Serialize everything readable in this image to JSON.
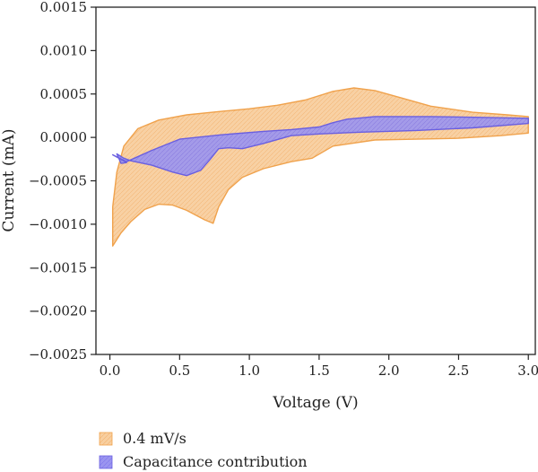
{
  "chart_data": {
    "type": "area",
    "title": "",
    "xlabel": "Voltage (V)",
    "ylabel": "Current (mA)",
    "xlim": [
      -0.1,
      3.05
    ],
    "ylim": [
      -0.0025,
      0.0015
    ],
    "x_ticks": [
      0.0,
      0.5,
      1.0,
      1.5,
      2.0,
      2.5,
      3.0
    ],
    "x_tick_labels": [
      "0.0",
      "0.5",
      "1.0",
      "1.5",
      "2.0",
      "2.5",
      "3.0"
    ],
    "y_ticks": [
      0.0015,
      0.001,
      0.0005,
      0.0,
      -0.0005,
      -0.001,
      -0.0015,
      -0.002,
      -0.0025
    ],
    "y_tick_labels": [
      "0.0015",
      "0.0010",
      "0.0005",
      "0.0000",
      "−0.0005",
      "−0.0010",
      "−0.0015",
      "−0.0020",
      "−0.0025"
    ],
    "grid": false,
    "legend_position": "bottom-left, below plot",
    "series": [
      {
        "name": "0.4 mV/s",
        "fill_color": "#f8cf9f",
        "edge_color": "#f0a24c",
        "hatch_color": "#f3b270",
        "points": [
          [
            0.02,
            -0.00125
          ],
          [
            0.02,
            -0.0008
          ],
          [
            0.05,
            -0.0004
          ],
          [
            0.1,
            -0.0001
          ],
          [
            0.2,
            0.0001
          ],
          [
            0.35,
            0.0002
          ],
          [
            0.55,
            0.00026
          ],
          [
            0.8,
            0.0003
          ],
          [
            1.0,
            0.00033
          ],
          [
            1.2,
            0.00037
          ],
          [
            1.4,
            0.00043
          ],
          [
            1.6,
            0.00053
          ],
          [
            1.75,
            0.00057
          ],
          [
            1.9,
            0.00054
          ],
          [
            2.1,
            0.00045
          ],
          [
            2.3,
            0.00036
          ],
          [
            2.6,
            0.00029
          ],
          [
            2.85,
            0.00026
          ],
          [
            3.0,
            0.00024
          ],
          [
            3.0,
            5e-05
          ],
          [
            2.8,
            2e-05
          ],
          [
            2.5,
            -1e-05
          ],
          [
            2.2,
            -2e-05
          ],
          [
            1.9,
            -3e-05
          ],
          [
            1.6,
            -0.0001
          ],
          [
            1.45,
            -0.00024
          ],
          [
            1.3,
            -0.00028
          ],
          [
            1.1,
            -0.00036
          ],
          [
            0.95,
            -0.00046
          ],
          [
            0.85,
            -0.0006
          ],
          [
            0.78,
            -0.0008
          ],
          [
            0.74,
            -0.00099
          ],
          [
            0.68,
            -0.00095
          ],
          [
            0.55,
            -0.00084
          ],
          [
            0.45,
            -0.00078
          ],
          [
            0.35,
            -0.00077
          ],
          [
            0.25,
            -0.00083
          ],
          [
            0.15,
            -0.00097
          ],
          [
            0.08,
            -0.0011
          ],
          [
            0.02,
            -0.00125
          ]
        ]
      },
      {
        "name": "Capacitance contribution",
        "fill_color": "#9b95f0",
        "edge_color": "#6a5fe0",
        "hatch_color": "#7e76ec",
        "points": [
          [
            0.02,
            -0.0002
          ],
          [
            0.12,
            -0.00028
          ],
          [
            0.3,
            -0.00015
          ],
          [
            0.5,
            -2e-05
          ],
          [
            0.8,
            3e-05
          ],
          [
            1.1,
            7e-05
          ],
          [
            1.3,
            9e-05
          ],
          [
            1.5,
            0.00012
          ],
          [
            1.6,
            0.00017
          ],
          [
            1.7,
            0.00021
          ],
          [
            1.9,
            0.00024
          ],
          [
            2.3,
            0.00024
          ],
          [
            2.7,
            0.00023
          ],
          [
            3.0,
            0.00022
          ],
          [
            3.0,
            0.00016
          ],
          [
            2.6,
            0.00011
          ],
          [
            2.2,
            8e-05
          ],
          [
            1.8,
            6e-05
          ],
          [
            1.5,
            4e-05
          ],
          [
            1.3,
            2e-05
          ],
          [
            1.1,
            -7e-05
          ],
          [
            0.95,
            -0.00013
          ],
          [
            0.85,
            -0.00012
          ],
          [
            0.78,
            -0.00013
          ],
          [
            0.72,
            -0.00025
          ],
          [
            0.65,
            -0.00038
          ],
          [
            0.55,
            -0.00044
          ],
          [
            0.45,
            -0.0004
          ],
          [
            0.3,
            -0.00032
          ],
          [
            0.15,
            -0.00027
          ],
          [
            0.1,
            -0.00024
          ],
          [
            0.05,
            -0.00019
          ],
          [
            0.08,
            -0.0003
          ],
          [
            0.12,
            -0.00029
          ],
          [
            0.02,
            -0.0002
          ]
        ]
      }
    ]
  },
  "legend": [
    {
      "label": "0.4 mV/s"
    },
    {
      "label": "Capacitance contribution"
    }
  ]
}
